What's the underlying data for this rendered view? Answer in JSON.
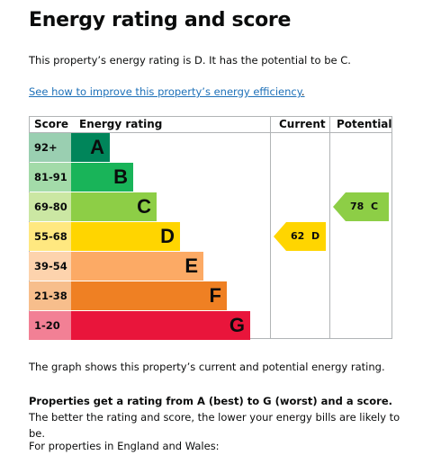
{
  "page": {
    "title": "Energy rating and score",
    "intro": "This property’s energy rating is D. It has the potential to be C.",
    "link_text": "See how to improve this property’s energy efficiency",
    "link_suffix": "."
  },
  "chart_data": {
    "type": "table",
    "headers": {
      "score": "Score",
      "rating": "Energy rating",
      "current": "Current",
      "potential": "Potential"
    },
    "bands": [
      {
        "score": "92+",
        "letter": "A",
        "bar_color": "#00855a",
        "score_color": "#9acfb1"
      },
      {
        "score": "81-91",
        "letter": "B",
        "bar_color": "#19b459",
        "score_color": "#a3dba9"
      },
      {
        "score": "69-80",
        "letter": "C",
        "bar_color": "#8dce46",
        "score_color": "#cbe7a3"
      },
      {
        "score": "55-68",
        "letter": "D",
        "bar_color": "#ffd500",
        "score_color": "#ffe880"
      },
      {
        "score": "39-54",
        "letter": "E",
        "bar_color": "#fcaa65",
        "score_color": "#fdd3ad"
      },
      {
        "score": "21-38",
        "letter": "F",
        "bar_color": "#ef8023",
        "score_color": "#f7be8c"
      },
      {
        "score": "1-20",
        "letter": "G",
        "bar_color": "#e9153b",
        "score_color": "#f28095"
      }
    ],
    "current": {
      "score": 62,
      "letter": "D",
      "label": "62  D",
      "color": "#ffd500"
    },
    "potential": {
      "score": 78,
      "letter": "C",
      "label": "78  C",
      "color": "#8dce46"
    }
  },
  "text": {
    "graph_caption": "The graph shows this property’s current and potential energy rating.",
    "bold_sentence": "Properties get a rating from A (best) to G (worst) and a score.",
    "rest_sentence": " The better the rating and score, the lower your energy bills are likely to be.",
    "england_wales": "For properties in England and Wales:"
  }
}
